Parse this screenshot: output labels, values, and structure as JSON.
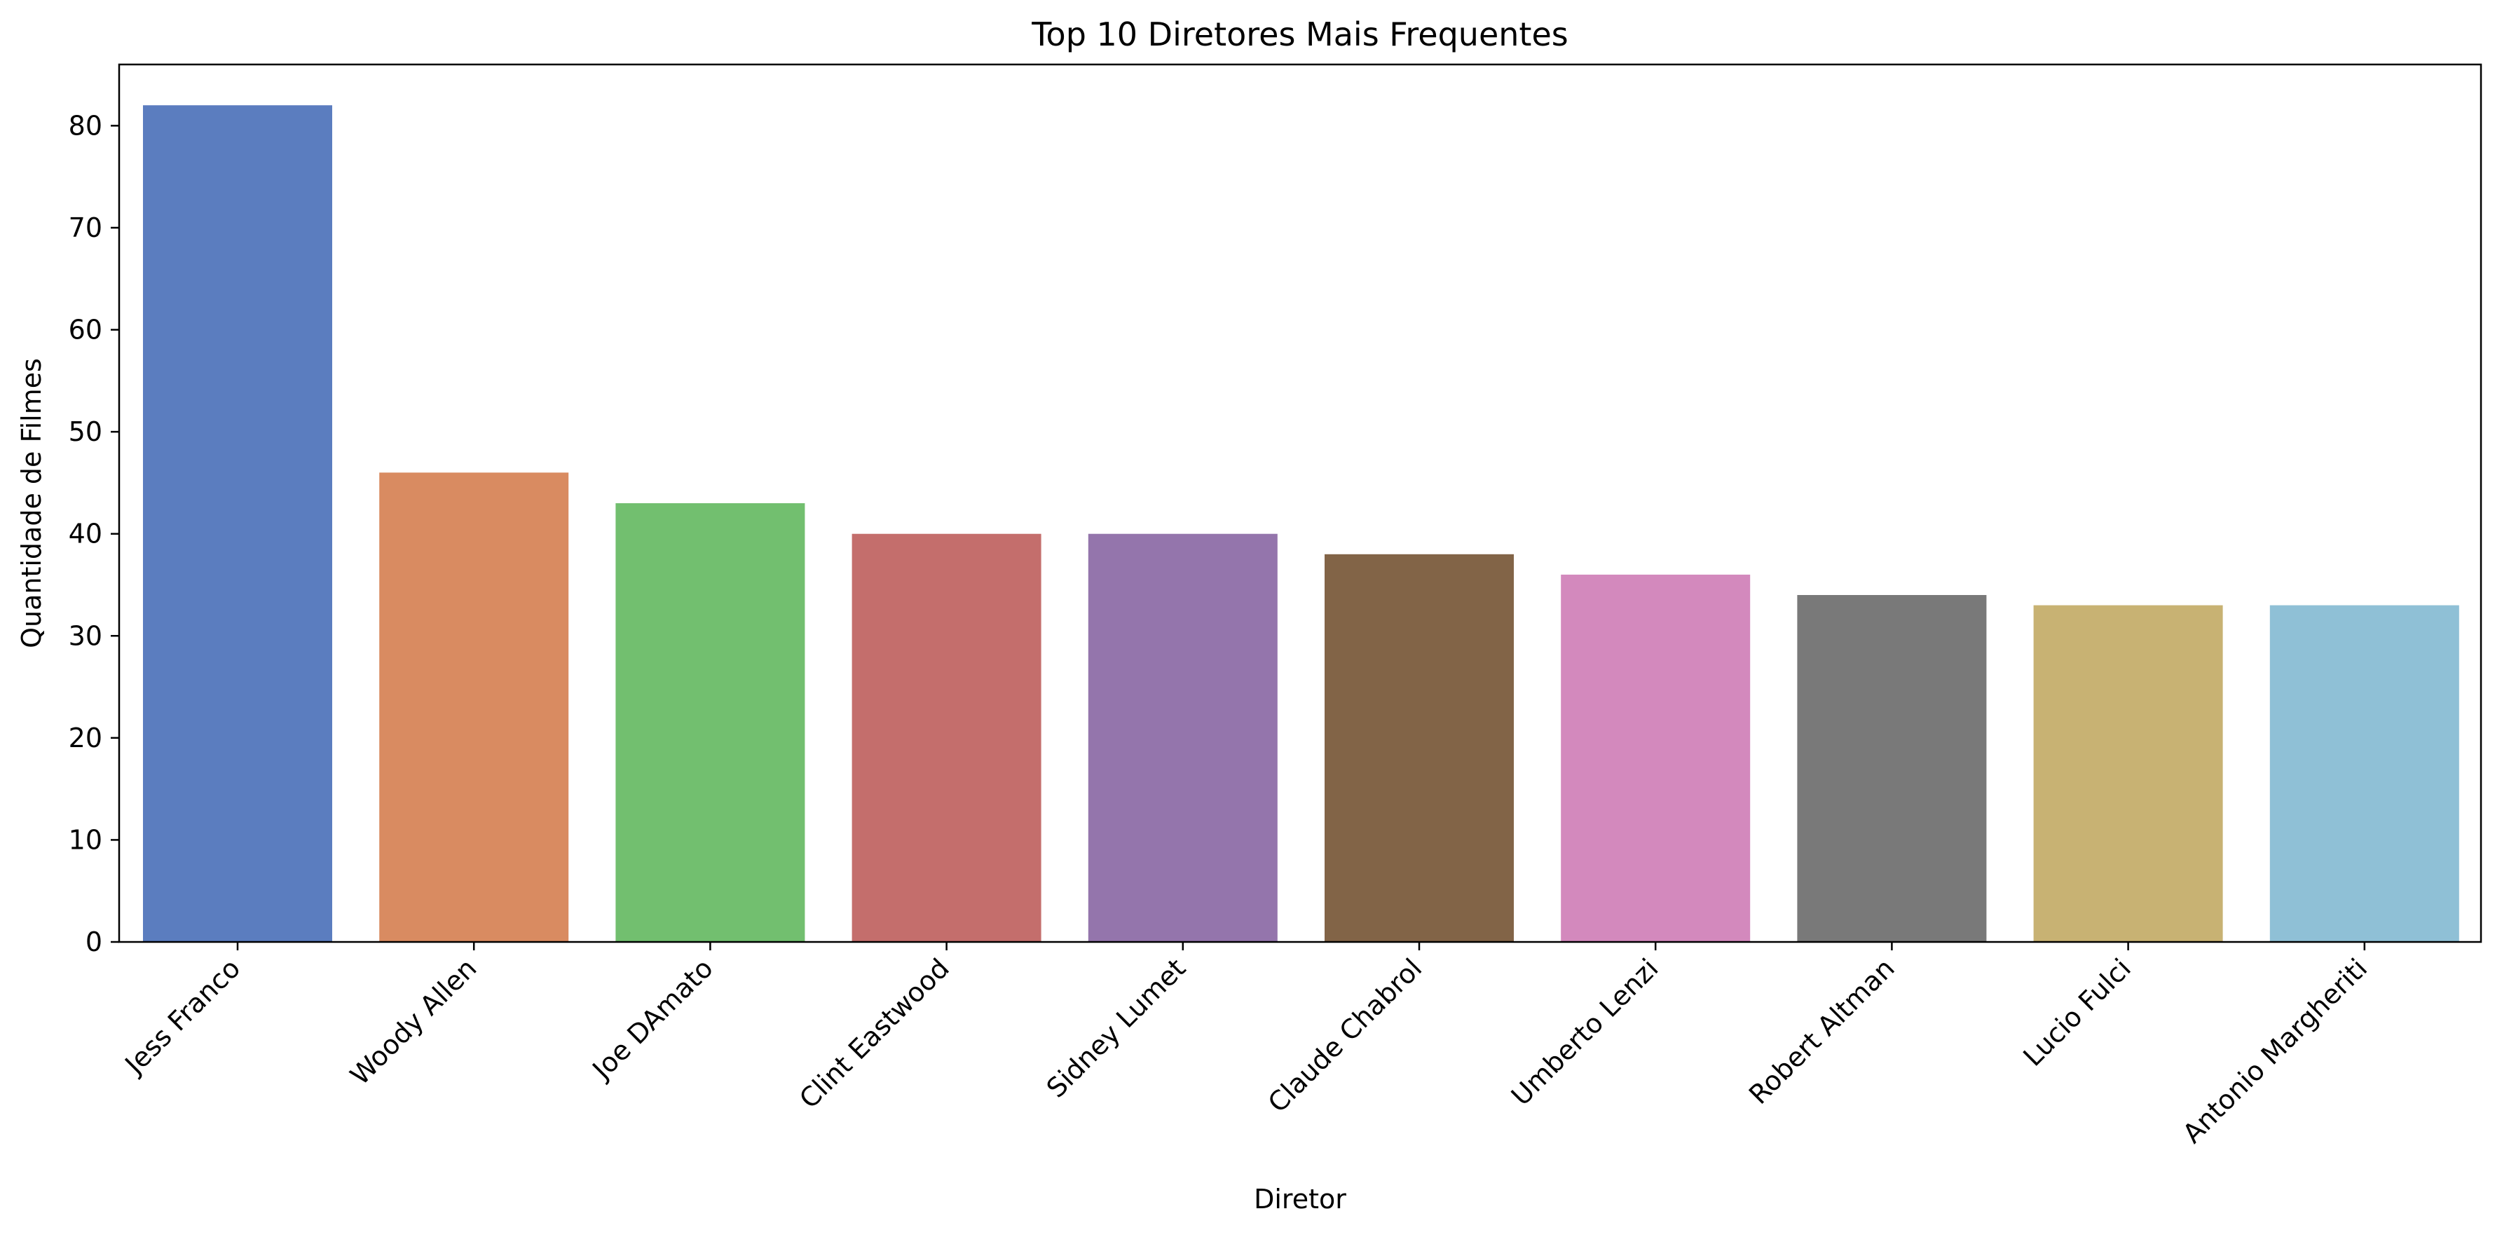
{
  "chart_data": {
    "type": "bar",
    "title": "Top 10 Diretores Mais Frequentes",
    "xlabel": "Diretor",
    "ylabel": "Quantidade de Filmes",
    "categories": [
      "Jess Franco",
      "Woody Allen",
      "Joe DAmato",
      "Clint Eastwood",
      "Sidney Lumet",
      "Claude Chabrol",
      "Umberto Lenzi",
      "Robert Altman",
      "Lucio Fulci",
      "Antonio Margheriti"
    ],
    "values": [
      82,
      46,
      43,
      40,
      40,
      38,
      36,
      34,
      33,
      33
    ],
    "colors": [
      "#5b7dbf",
      "#d98b61",
      "#72bf6f",
      "#c46e6c",
      "#9475ac",
      "#826447",
      "#d389bd",
      "#797979",
      "#c8b273",
      "#8fc0d6"
    ],
    "ylim": [
      0,
      86
    ],
    "yticks": [
      0,
      10,
      20,
      30,
      40,
      50,
      60,
      70,
      80
    ],
    "grid": false,
    "legend": false
  }
}
